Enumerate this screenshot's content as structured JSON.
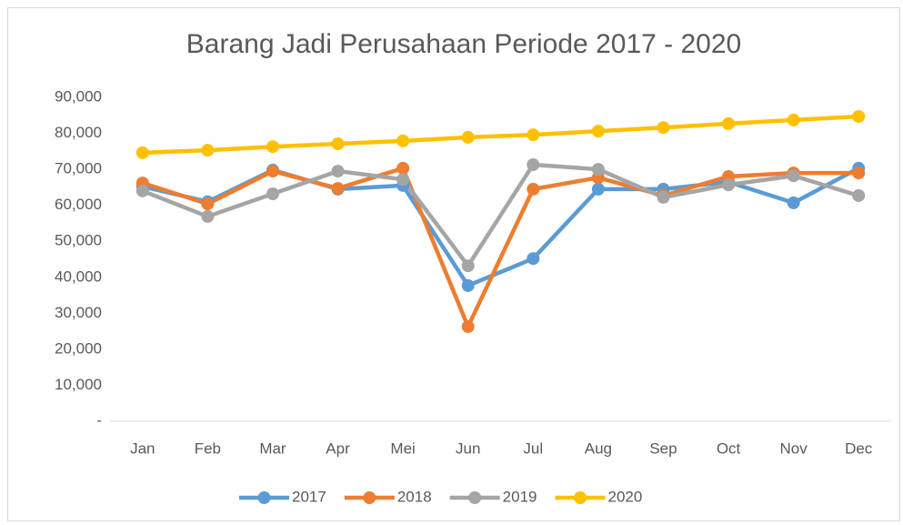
{
  "chart_data": {
    "type": "line",
    "title": "Barang Jadi Perusahaan Periode 2017 - 2020",
    "categories": [
      "Jan",
      "Feb",
      "Mar",
      "Apr",
      "Mei",
      "Jun",
      "Jul",
      "Aug",
      "Sep",
      "Oct",
      "Nov",
      "Dec"
    ],
    "series": [
      {
        "name": "2017",
        "color": "#5b9bd5",
        "values": [
          65200,
          61000,
          69800,
          64500,
          65500,
          37700,
          45200,
          64500,
          64500,
          66500,
          60700,
          70300
        ]
      },
      {
        "name": "2018",
        "color": "#ed7d31",
        "values": [
          66200,
          60400,
          69500,
          64700,
          70300,
          26300,
          64500,
          67700,
          62700,
          68000,
          69000,
          69000
        ]
      },
      {
        "name": "2019",
        "color": "#a5a5a5",
        "values": [
          64000,
          56900,
          63200,
          69500,
          67200,
          43200,
          71300,
          70000,
          62200,
          65700,
          68200,
          62700
        ]
      },
      {
        "name": "2020",
        "color": "#ffc000",
        "values": [
          74600,
          75300,
          76300,
          77100,
          77900,
          78900,
          79600,
          80600,
          81600,
          82700,
          83700,
          84700
        ]
      }
    ],
    "ylim": [
      0,
      90000
    ],
    "yticks": [
      {
        "value": 0,
        "label": "-"
      },
      {
        "value": 10000,
        "label": "10,000"
      },
      {
        "value": 20000,
        "label": "20,000"
      },
      {
        "value": 30000,
        "label": "30,000"
      },
      {
        "value": 40000,
        "label": "40,000"
      },
      {
        "value": 50000,
        "label": "50,000"
      },
      {
        "value": 60000,
        "label": "60,000"
      },
      {
        "value": 70000,
        "label": "70,000"
      },
      {
        "value": 80000,
        "label": "80,000"
      },
      {
        "value": 90000,
        "label": "90,000"
      }
    ],
    "grid": false,
    "legend": "bottom"
  }
}
